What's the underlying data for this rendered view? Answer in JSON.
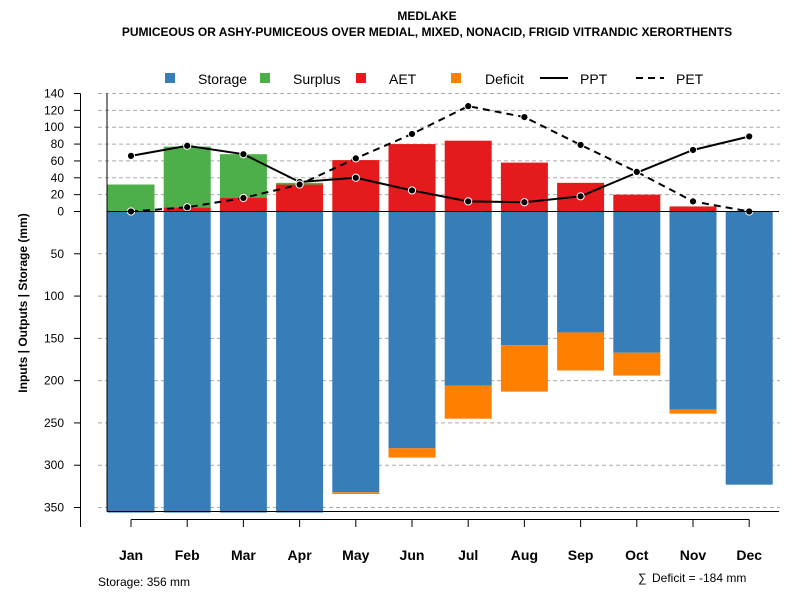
{
  "chart_data": {
    "type": "bar",
    "title": "MEDLAKE",
    "subtitle": "PUMICEOUS OR ASHY-PUMICEOUS OVER MEDIAL, MIXED, NONACID, FRIGID VITRANDIC XERORTHENTS",
    "ylabel": "Inputs | Outputs | Storage    (mm)",
    "categories": [
      "Jan",
      "Feb",
      "Mar",
      "Apr",
      "May",
      "Jun",
      "Jul",
      "Aug",
      "Sep",
      "Oct",
      "Nov",
      "Dec"
    ],
    "ylim": [
      -356,
      140
    ],
    "yticks_positive": [
      0,
      20,
      40,
      60,
      80,
      100,
      120,
      140
    ],
    "yticks_negative": [
      50,
      100,
      150,
      200,
      250,
      300,
      350
    ],
    "grid": true,
    "legend_position": "top",
    "series": [
      {
        "name": "Storage",
        "kind": "bar-below",
        "color": "#377eb8",
        "values": [
          356,
          356,
          356,
          356,
          332,
          280,
          206,
          158,
          143,
          167,
          234,
          323
        ]
      },
      {
        "name": "Deficit",
        "kind": "bar-below-stack",
        "color": "#ff7f00",
        "values": [
          0,
          0,
          0,
          0,
          2,
          11,
          39,
          55,
          45,
          27,
          5,
          0
        ]
      },
      {
        "name": "AET",
        "kind": "bar-above",
        "color": "#e41a1c",
        "values": [
          0,
          5,
          16,
          32,
          61,
          80,
          84,
          58,
          34,
          20,
          6,
          0
        ]
      },
      {
        "name": "Surplus",
        "kind": "bar-above-stack",
        "color": "#4daf4a",
        "values": [
          32,
          72,
          52,
          2,
          0,
          0,
          0,
          0,
          0,
          0,
          0,
          0
        ]
      },
      {
        "name": "PPT",
        "kind": "line",
        "dash": "solid",
        "color": "#000000",
        "values": [
          66,
          78,
          68,
          35,
          40,
          25,
          12,
          11,
          18,
          46,
          73,
          89
        ]
      },
      {
        "name": "PET",
        "kind": "line",
        "dash": "dashed",
        "color": "#000000",
        "values": [
          0,
          5,
          16,
          32,
          63,
          92,
          125,
          112,
          79,
          47,
          12,
          0
        ]
      }
    ],
    "legend": [
      "Storage",
      "Surplus",
      "AET",
      "Deficit",
      "PPT",
      "PET"
    ]
  },
  "footer": {
    "storage_label": "Storage: 356 mm",
    "deficit_symbol": "∑",
    "deficit_label": "Deficit = -184 mm"
  }
}
